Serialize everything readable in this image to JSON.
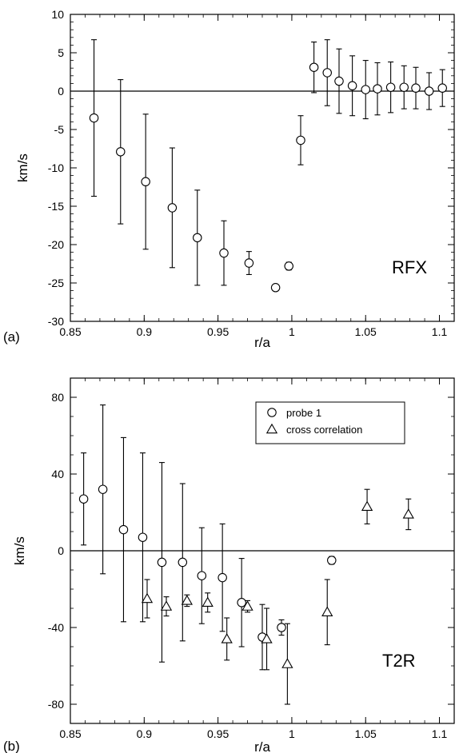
{
  "chart_data": [
    {
      "type": "scatter",
      "panel_label": "(a)",
      "annotation": "RFX",
      "xlabel": "r/a",
      "ylabel": "km/s",
      "xlim": [
        0.85,
        1.11
      ],
      "ylim": [
        -30,
        10
      ],
      "xticks": [
        "0.85",
        "0.9",
        "0.95",
        "1",
        "1.05",
        "1.1"
      ],
      "yticks": [
        "-30",
        "-25",
        "-20",
        "-15",
        "-10",
        "-5",
        "0",
        "5",
        "10"
      ],
      "zero_line": true,
      "series": [
        {
          "marker": "circle",
          "points": [
            {
              "x": 0.866,
              "y": -3.5,
              "err": 10.2
            },
            {
              "x": 0.884,
              "y": -7.9,
              "err": 9.4
            },
            {
              "x": 0.901,
              "y": -11.8,
              "err": 8.8
            },
            {
              "x": 0.919,
              "y": -15.2,
              "err": 7.8
            },
            {
              "x": 0.936,
              "y": -19.1,
              "err": 6.2
            },
            {
              "x": 0.954,
              "y": -21.1,
              "err": 4.2
            },
            {
              "x": 0.971,
              "y": -22.4,
              "err": 1.5
            },
            {
              "x": 0.989,
              "y": -25.6,
              "err": 0.4
            },
            {
              "x": 0.998,
              "y": -22.8,
              "err": 0.5
            },
            {
              "x": 1.006,
              "y": -6.4,
              "err": 3.2
            },
            {
              "x": 1.015,
              "y": 3.1,
              "err": 3.3
            },
            {
              "x": 1.024,
              "y": 2.4,
              "err": 4.3
            },
            {
              "x": 1.032,
              "y": 1.3,
              "err": 4.2
            },
            {
              "x": 1.041,
              "y": 0.7,
              "err": 3.9
            },
            {
              "x": 1.05,
              "y": 0.2,
              "err": 3.8
            },
            {
              "x": 1.058,
              "y": 0.3,
              "err": 3.4
            },
            {
              "x": 1.067,
              "y": 0.5,
              "err": 3.3
            },
            {
              "x": 1.076,
              "y": 0.5,
              "err": 2.8
            },
            {
              "x": 1.084,
              "y": 0.4,
              "err": 2.7
            },
            {
              "x": 1.093,
              "y": 0.0,
              "err": 2.4
            },
            {
              "x": 1.102,
              "y": 0.4,
              "err": 2.4
            }
          ]
        }
      ]
    },
    {
      "type": "scatter",
      "panel_label": "(b)",
      "annotation": "T2R",
      "xlabel": "r/a",
      "ylabel": "km/s",
      "xlim": [
        0.85,
        1.11
      ],
      "ylim": [
        -90,
        90
      ],
      "ytick_values": [
        -80,
        -40,
        0,
        40,
        80
      ],
      "xticks": [
        "0.85",
        "0.9",
        "0.95",
        "1",
        "1.05",
        "1.1"
      ],
      "yticks": [
        "-80",
        "-40",
        "0",
        "40",
        "80"
      ],
      "zero_line": true,
      "legend_position": "top-right",
      "series": [
        {
          "name": "probe 1",
          "marker": "circle",
          "points": [
            {
              "x": 0.859,
              "y": 27,
              "err": 24
            },
            {
              "x": 0.872,
              "y": 32,
              "err": 44
            },
            {
              "x": 0.886,
              "y": 11,
              "err": 48
            },
            {
              "x": 0.899,
              "y": 7,
              "err": 44
            },
            {
              "x": 0.912,
              "y": -6,
              "err": 52
            },
            {
              "x": 0.926,
              "y": -6,
              "err": 41
            },
            {
              "x": 0.939,
              "y": -13,
              "err": 25
            },
            {
              "x": 0.953,
              "y": -14,
              "err": 28
            },
            {
              "x": 0.966,
              "y": -27,
              "err": 23
            },
            {
              "x": 0.98,
              "y": -45,
              "err": 17
            },
            {
              "x": 0.993,
              "y": -40,
              "err": 4
            },
            {
              "x": 1.027,
              "y": -5,
              "err": 2
            }
          ]
        },
        {
          "name": "cross correlation",
          "marker": "triangle",
          "points": [
            {
              "x": 0.902,
              "y": -25,
              "err": 10
            },
            {
              "x": 0.915,
              "y": -29,
              "err": 5
            },
            {
              "x": 0.929,
              "y": -26,
              "err": 3
            },
            {
              "x": 0.943,
              "y": -27,
              "err": 5
            },
            {
              "x": 0.956,
              "y": -46,
              "err": 11
            },
            {
              "x": 0.97,
              "y": -29,
              "err": 3
            },
            {
              "x": 0.983,
              "y": -46,
              "err": 16
            },
            {
              "x": 0.997,
              "y": -59,
              "err": 21
            },
            {
              "x": 1.024,
              "y": -32,
              "err": 17
            },
            {
              "x": 1.051,
              "y": 23,
              "err": 9
            },
            {
              "x": 1.079,
              "y": 19,
              "err": 8
            }
          ]
        }
      ]
    }
  ]
}
